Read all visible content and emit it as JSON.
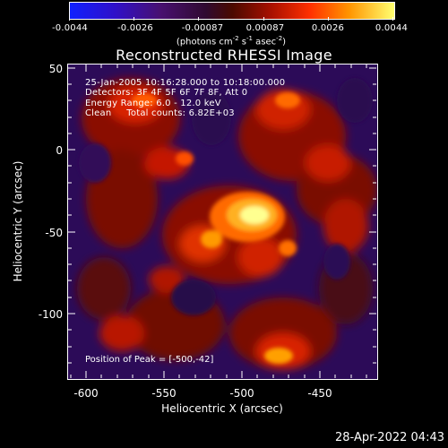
{
  "colorbar": {
    "tick_labels": [
      "-0.0044",
      "-0.0026",
      "-0.00087",
      "0.00087",
      "0.0026",
      "0.0044"
    ],
    "units_main": "(photons cm",
    "units_exp1": "-2",
    "units_s": " s",
    "units_exp2": "-1",
    "units_asec": " asec",
    "units_exp3": "-2",
    "units_close": ")"
  },
  "title": "Reconstructed RHESSI Image",
  "info": {
    "time_range": "25-Jan-2005 10:16:28.000 to 10:18:00.000",
    "detectors": "Detectors: 3F 4F 5F 6F 7F 8F, Att 0",
    "energy": "Energy Range: 6.0 - 12.0 keV",
    "clean": "Clean     Total counts: 6.82E+03"
  },
  "peak": "Position of Peak = [-500,-42]",
  "axes": {
    "xlabel": "Heliocentric X (arcsec)",
    "ylabel": "Heliocentric Y (arcsec)",
    "xticks": [
      "-600",
      "-550",
      "-500",
      "-450"
    ],
    "yticks": [
      "50",
      "0",
      "-50",
      "-100"
    ]
  },
  "timestamp": "28-Apr-2022 04:43"
}
